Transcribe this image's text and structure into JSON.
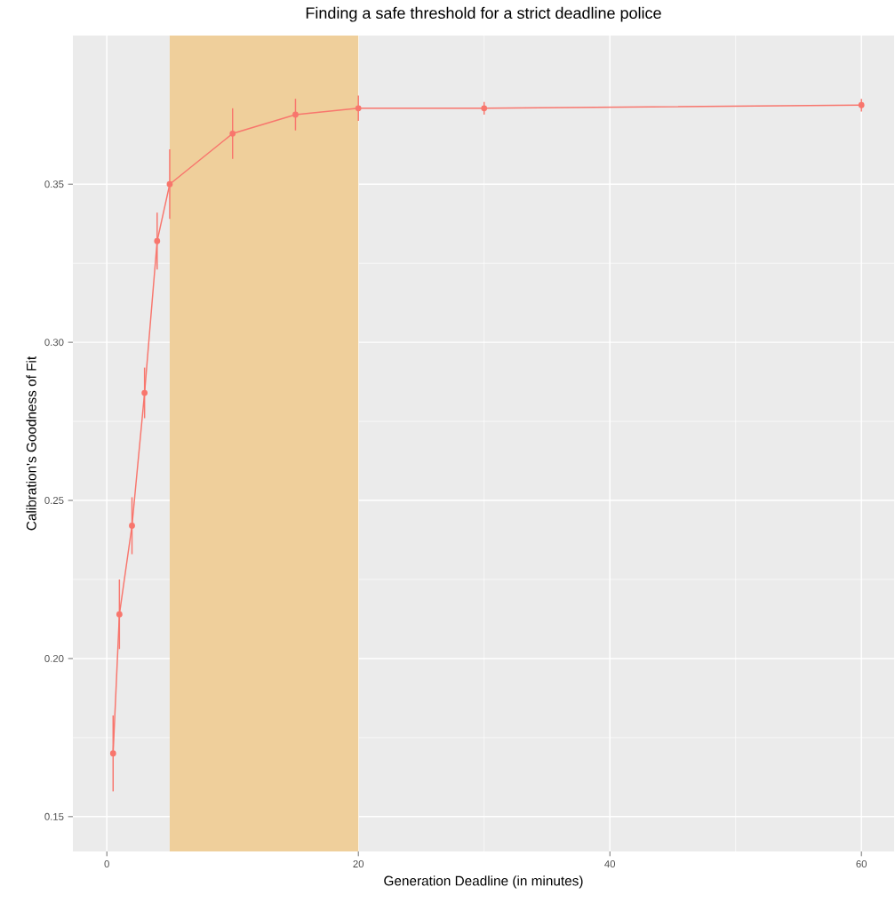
{
  "chart_data": {
    "type": "line",
    "title": "Finding a safe threshold for a strict deadline police",
    "xlabel": "Generation Deadline (in minutes)",
    "ylabel": "Calibration's Goodness of Fit",
    "x": [
      0.5,
      1,
      2,
      3,
      4,
      5,
      10,
      15,
      20,
      30,
      60
    ],
    "series": [
      {
        "color": "#f8766d",
        "values": [
          0.17,
          0.214,
          0.242,
          0.284,
          0.332,
          0.35,
          0.366,
          0.372,
          0.374,
          0.374,
          0.375
        ],
        "errors": [
          0.012,
          0.011,
          0.009,
          0.008,
          0.009,
          0.011,
          0.008,
          0.005,
          0.004,
          0.002,
          0.002
        ]
      }
    ],
    "bands": [
      {
        "axis": "x",
        "from": 5,
        "to": 20,
        "color": "#efcf9b"
      }
    ],
    "xlim": [
      -2.7,
      62.6
    ],
    "ylim": [
      0.139,
      0.397
    ],
    "xticks": [
      0,
      20,
      40,
      60
    ],
    "yticks": [
      {
        "value": 0.15,
        "label": "0.15"
      },
      {
        "value": 0.2,
        "label": "0.20"
      },
      {
        "value": 0.25,
        "label": "0.25"
      },
      {
        "value": 0.3,
        "label": "0.30"
      },
      {
        "value": 0.35,
        "label": "0.35"
      }
    ],
    "grid": true,
    "marker": "circle",
    "line_style": "solid"
  }
}
